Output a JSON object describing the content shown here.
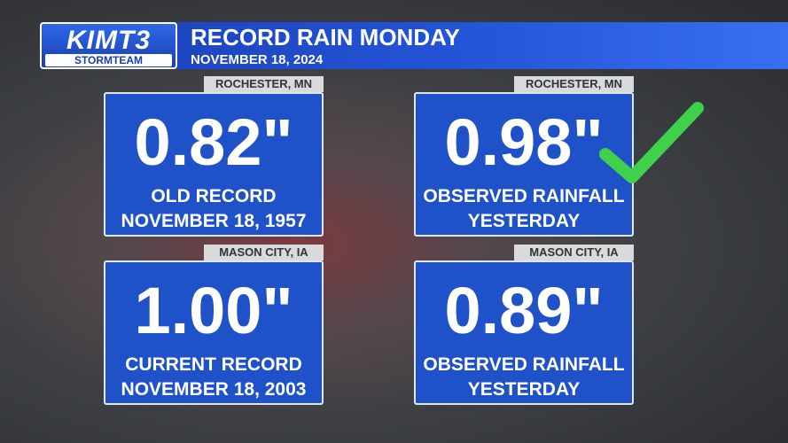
{
  "header": {
    "logo": "KIMT3",
    "logo_sub": "STORMTEAM",
    "title": "RECORD RAIN MONDAY",
    "subtitle": "NOVEMBER 18, 2024"
  },
  "cards": [
    {
      "location": "ROCHESTER, MN",
      "value": "0.82\"",
      "lines": [
        "OLD RECORD",
        "NOVEMBER 18, 1957"
      ]
    },
    {
      "location": "ROCHESTER, MN",
      "value": "0.98\"",
      "lines": [
        "OBSERVED RAINFALL",
        "YESTERDAY"
      ]
    },
    {
      "location": "MASON CITY, IA",
      "value": "1.00\"",
      "lines": [
        "CURRENT RECORD",
        "NOVEMBER 18, 2003"
      ]
    },
    {
      "location": "MASON CITY, IA",
      "value": "0.89\"",
      "lines": [
        "OBSERVED RAINFALL",
        "YESTERDAY"
      ]
    }
  ]
}
